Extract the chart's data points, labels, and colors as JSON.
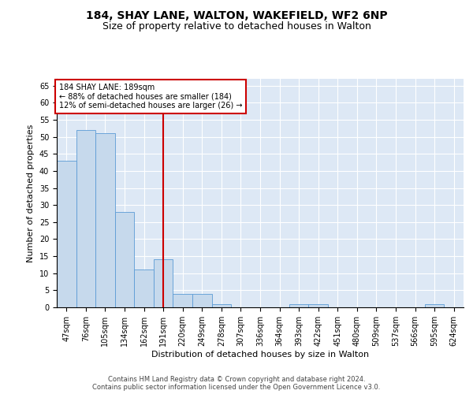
{
  "title1": "184, SHAY LANE, WALTON, WAKEFIELD, WF2 6NP",
  "title2": "Size of property relative to detached houses in Walton",
  "xlabel": "Distribution of detached houses by size in Walton",
  "ylabel": "Number of detached properties",
  "categories": [
    "47sqm",
    "76sqm",
    "105sqm",
    "134sqm",
    "162sqm",
    "191sqm",
    "220sqm",
    "249sqm",
    "278sqm",
    "307sqm",
    "336sqm",
    "364sqm",
    "393sqm",
    "422sqm",
    "451sqm",
    "480sqm",
    "509sqm",
    "537sqm",
    "566sqm",
    "595sqm",
    "624sqm"
  ],
  "values": [
    43,
    52,
    51,
    28,
    11,
    14,
    4,
    4,
    1,
    0,
    0,
    0,
    1,
    1,
    0,
    0,
    0,
    0,
    0,
    1,
    0
  ],
  "bar_color": "#c6d9ec",
  "bar_edge_color": "#5b9bd5",
  "vline_x": 5,
  "vline_color": "#cc0000",
  "annotation_line1": "184 SHAY LANE: 189sqm",
  "annotation_line2": "← 88% of detached houses are smaller (184)",
  "annotation_line3": "12% of semi-detached houses are larger (26) →",
  "annotation_box_color": "#cc0000",
  "ylim": [
    0,
    67
  ],
  "yticks": [
    0,
    5,
    10,
    15,
    20,
    25,
    30,
    35,
    40,
    45,
    50,
    55,
    60,
    65
  ],
  "footer1": "Contains HM Land Registry data © Crown copyright and database right 2024.",
  "footer2": "Contains public sector information licensed under the Open Government Licence v3.0.",
  "background_color": "#dde8f5",
  "grid_color": "#ffffff",
  "title1_fontsize": 10,
  "title2_fontsize": 9,
  "ylabel_fontsize": 8,
  "xlabel_fontsize": 8,
  "tick_fontsize": 7,
  "annotation_fontsize": 7,
  "footer_fontsize": 6
}
